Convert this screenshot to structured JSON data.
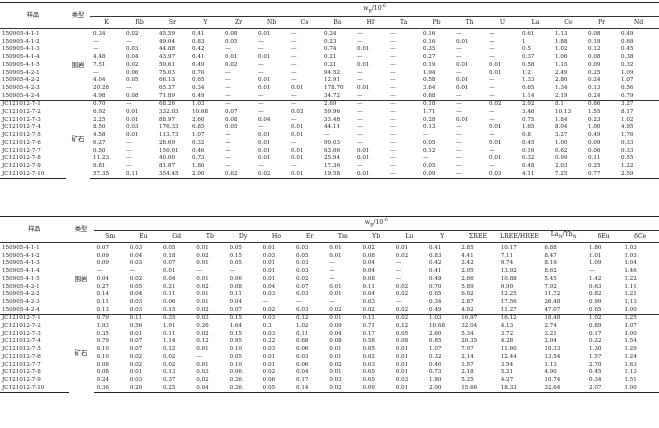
{
  "table1": {
    "header_left": [
      "样品",
      "类型"
    ],
    "unit": "w_B/10^-6",
    "columns": [
      "K",
      "Rb",
      "Sr",
      "Y",
      "Zr",
      "Nb",
      "Cs",
      "Ba",
      "Hf",
      "Ta",
      "Pb",
      "Th",
      "U",
      "La",
      "Ce",
      "Pr",
      "Nd"
    ],
    "groups": [
      {
        "label": "围岩",
        "rows": [
          {
            "sample": "150905-4-1-1",
            "values": [
              "0.34",
              "0.02",
              "45.59",
              "0.41",
              "0.08",
              "0.01",
              "—",
              "0.24",
              "—",
              "—",
              "0.16",
              "—",
              "—",
              "0.61",
              "1.13",
              "0.08",
              "0.49"
            ]
          },
          {
            "sample": "150905-4-1-2",
            "values": [
              "—",
              "—",
              "49.04",
              "0.83",
              "0.05",
              "—",
              "—",
              "0.23",
              "—",
              "—",
              "0.16",
              "0.01",
              "—",
              "1",
              "1.88",
              "0.18",
              "0.68"
            ]
          },
          {
            "sample": "150905-4-1-3",
            "values": [
              "—",
              "0.03",
              "44.88",
              "0.42",
              "—",
              "—",
              "—",
              "0.74",
              "0.01",
              "—",
              "0.35",
              "—",
              "—",
              "0.5",
              "1.02",
              "0.12",
              "0.45"
            ]
          },
          {
            "sample": "150905-4-1-4",
            "values": [
              "4.48",
              "0.04",
              "43.97",
              "0.41",
              "0.01",
              "0.01",
              "—",
              "0.21",
              "—",
              "—",
              "0.27",
              "—",
              "—",
              "0.37",
              "1.06",
              "0.08",
              "0.38"
            ]
          },
          {
            "sample": "150905-4-1-5",
            "values": [
              "7.51",
              "0.02",
              "50.61",
              "0.49",
              "0.02",
              "—",
              "—",
              "0.21",
              "0.01",
              "—",
              "0.19",
              "0.01",
              "0.01",
              "0.58",
              "1.15",
              "0.09",
              "0.32"
            ]
          },
          {
            "sample": "150905-4-2-1",
            "values": [
              "—",
              "0.06",
              "75.03",
              "0.70",
              "—",
              "—",
              "—",
              "94.52",
              "—",
              "—",
              "1.94",
              "—",
              "0.01",
              "1.2",
              "2.49",
              "0.25",
              "1.09"
            ]
          },
          {
            "sample": "150905-4-2-2",
            "values": [
              "4.04",
              "0.05",
              "66.13",
              "0.65",
              "—",
              "0.01",
              "—",
              "12.91",
              "—",
              "—",
              "0.58",
              "0.01",
              "—",
              "1.33",
              "2.80",
              "0.24",
              "1.07"
            ]
          },
          {
            "sample": "150905-4-2-3",
            "values": [
              "20.28",
              "—",
              "65.37",
              "0.34",
              "—",
              "0.01",
              "0.01",
              "178.70",
              "0.01",
              "—",
              "3.64",
              "0.01",
              "—",
              "0.65",
              "1.34",
              "0.13",
              "0.56"
            ]
          },
          {
            "sample": "150905-4-2-4",
            "values": [
              "4.98",
              "0.08",
              "71.89",
              "0.49",
              "—",
              "—",
              "—",
              "34.72",
              "—",
              "—",
              "0.68",
              "—",
              "—",
              "1.14",
              "2.19",
              "0.24",
              "0.79"
            ]
          }
        ]
      },
      {
        "label": "矿石",
        "rows": [
          {
            "sample": "JC121012-7-1",
            "values": [
              "0.70",
              "—",
              "68.26",
              "1.03",
              "—",
              "—",
              "—",
              "2.69",
              "—",
              "—",
              "0.18",
              "—",
              "0.02",
              "2.92",
              "8.1",
              "0.86",
              "3.27"
            ]
          },
          {
            "sample": "JC121012-7-2",
            "values": [
              "6.92",
              "0.01",
              "332.03",
              "10.68",
              "0.07",
              "—",
              "0.03",
              "59.96",
              "—",
              "—",
              "1.71",
              "—",
              "—",
              "3.46",
              "10.13",
              "1.55",
              "8.17"
            ]
          },
          {
            "sample": "JC121012-7-3",
            "values": [
              "2.25",
              "0.01",
              "88.97",
              "2.60",
              "0.08",
              "0.04",
              "—",
              "33.48",
              "—",
              "—",
              "0.28",
              "0.01",
              "—",
              "0.75",
              "1.84",
              "0.23",
              "1.02"
            ]
          },
          {
            "sample": "JC121012-7-4",
            "values": [
              "8.50",
              "0.03",
              "176.33",
              "6.85",
              "0.05",
              "—",
              "0.01",
              "44.11",
              "—",
              "—",
              "0.13",
              "—",
              "0.01",
              "1.65",
              "8.04",
              "1.00",
              "4.95"
            ]
          },
          {
            "sample": "JC121012-7-5",
            "values": [
              "4.58",
              "0.01",
              "113.73",
              "1.07",
              "—",
              "0.01",
              "0.01",
              "—",
              "—",
              "—",
              "—",
              "—",
              "—",
              "0.8",
              "3.27",
              "0.49",
              "1.76"
            ]
          },
          {
            "sample": "JC121012-7-6",
            "values": [
              "6.27",
              "—",
              "28.69",
              "0.32",
              "—",
              "0.01",
              "—",
              "99.03",
              "—",
              "—",
              "0.05",
              "—",
              "0.01",
              "0.45",
              "1.00",
              "0.09",
              "0.33"
            ]
          },
          {
            "sample": "JC121012-7-7",
            "values": [
              "0.50",
              "—",
              "156.01",
              "0.46",
              "—",
              "0.01",
              "0.01",
              "63.06",
              "0.01",
              "—",
              "0.12",
              "—",
              "—",
              "0.16",
              "0.62",
              "0.06",
              "0.33"
            ]
          },
          {
            "sample": "JC121012-7-8",
            "values": [
              "11.23",
              "—",
              "40.00",
              "0.73",
              "—",
              "0.01",
              "0.01",
              "25.94",
              "0.01",
              "—",
              "—",
              "—",
              "0.01",
              "0.32",
              "0.99",
              "0.11",
              "0.55"
            ]
          },
          {
            "sample": "JC121012-7-9",
            "values": [
              "9.81",
              "—",
              "81.87",
              "1.80",
              "—",
              "—",
              "—",
              "17.36",
              "—",
              "—",
              "0.05",
              "—",
              "—",
              "0.48",
              "2.03",
              "0.25",
              "1.22"
            ]
          },
          {
            "sample": "JC121012-7-10",
            "values": [
              "57.35",
              "0.11",
              "354.45",
              "2.00",
              "0.62",
              "0.02",
              "0.01",
              "19.58",
              "0.01",
              "—",
              "0.09",
              "—",
              "0.03",
              "4.11",
              "7.25",
              "0.77",
              "2.59"
            ]
          }
        ]
      }
    ]
  },
  "table2": {
    "header_left": [
      "样品",
      "类型"
    ],
    "unit": "w_B/10^-6",
    "columns": [
      "Sm",
      "Eu",
      "Gd",
      "Tb",
      "Dy",
      "Ho",
      "Er",
      "Tm",
      "Yb",
      "Lu",
      "Y",
      "ΣREE",
      "LREE/HREE",
      "La_N/Yb_N",
      "δEu",
      "δCe"
    ],
    "groups": [
      {
        "label": "围岩",
        "rows": [
          {
            "sample": "150905-4-1-1",
            "values": [
              "0.07",
              "0.03",
              "0.05",
              "0.01",
              "0.05",
              "0.01",
              "0.03",
              "0.01",
              "0.02",
              "0.01",
              "0.41",
              "2.85",
              "10.17",
              "6.88",
              "1.80",
              "1.03"
            ]
          },
          {
            "sample": "150905-4-1-2",
            "values": [
              "0.09",
              "0.04",
              "0.18",
              "0.02",
              "0.15",
              "0.03",
              "0.05",
              "0.01",
              "0.08",
              "0.02",
              "0.83",
              "4.41",
              "7.11",
              "8.47",
              "1.01",
              "1.03"
            ]
          },
          {
            "sample": "150905-4-1-3",
            "values": [
              "0.09",
              "0.03",
              "0.07",
              "0.01",
              "0.05",
              "0.01",
              "0.03",
              "—",
              "0.04",
              "—",
              "0.42",
              "2.42",
              "9.74",
              "8.19",
              "1.09",
              "1.04"
            ]
          },
          {
            "sample": "150905-4-1-4",
            "values": [
              "—",
              "—",
              "0.01",
              "—",
              "—",
              "0.01",
              "0.03",
              "—",
              "0.04",
              "—",
              "0.41",
              "2.05",
              "13.02",
              "8.62",
              "—",
              "1.46"
            ]
          },
          {
            "sample": "150905-4-1-5",
            "values": [
              "0.04",
              "0.02",
              "0.04",
              "0.01",
              "0.06",
              "0.01",
              "0.02",
              "—",
              "0.08",
              "—",
              "0.49",
              "2.66",
              "10.88",
              "5.45",
              "1.42",
              "1.22"
            ]
          },
          {
            "sample": "150905-4-2-1",
            "values": [
              "0.27",
              "0.05",
              "0.21",
              "0.02",
              "0.08",
              "0.04",
              "0.07",
              "0.01",
              "0.11",
              "0.02",
              "0.70",
              "5.89",
              "9.90",
              "7.92",
              "0.63",
              "1.11"
            ]
          },
          {
            "sample": "150905-4-2-2",
            "values": [
              "0.14",
              "0.04",
              "0.11",
              "0.01",
              "0.11",
              "0.03",
              "0.03",
              "0.01",
              "0.04",
              "0.02",
              "0.65",
              "6.02",
              "12.25",
              "11.72",
              "0.82",
              "1.21"
            ]
          },
          {
            "sample": "150905-4-2-3",
            "values": [
              "0.11",
              "0.03",
              "0.06",
              "0.01",
              "0.04",
              "—",
              "—",
              "—",
              "0.03",
              "—",
              "0.34",
              "2.87",
              "17.56",
              "26.48",
              "0.99",
              "1.13"
            ]
          },
          {
            "sample": "150905-4-2-4",
            "values": [
              "0.13",
              "0.03",
              "0.15",
              "0.02",
              "0.07",
              "0.02",
              "0.03",
              "0.02",
              "0.02",
              "0.02",
              "0.49",
              "4.92",
              "11.27",
              "47.07",
              "0.65",
              "1.00"
            ]
          }
        ]
      },
      {
        "label": "矿石",
        "rows": [
          {
            "sample": "JC121012-7-1",
            "values": [
              "0.79",
              "0.11",
              "0.35",
              "0.03",
              "0.15",
              "0.03",
              "0.12",
              "0.01",
              "0.11",
              "0.02",
              "1.03",
              "16.97",
              "16.12",
              "18.48",
              "1.02",
              "1.25"
            ]
          },
          {
            "sample": "JC121012-7-2",
            "values": [
              "1.93",
              "0.56",
              "1.91",
              "0.26",
              "1.64",
              "0.3",
              "1.02",
              "0.09",
              "0.71",
              "0.12",
              "10.68",
              "32.04",
              "4.13",
              "2.74",
              "0.89",
              "1.07"
            ]
          },
          {
            "sample": "JC121012-7-3",
            "values": [
              "0.35",
              "0.01",
              "0.11",
              "0.02",
              "0.15",
              "0.03",
              "0.11",
              "0.04",
              "0.17",
              "0.05",
              "2.60",
              "5.34",
              "3.72",
              "3.21",
              "0.17",
              "1.00"
            ]
          },
          {
            "sample": "JC121012-7-4",
            "values": [
              "0.79",
              "0.07",
              "1.14",
              "0.12",
              "0.95",
              "0.22",
              "0.68",
              "0.08",
              "0.58",
              "0.08",
              "6.85",
              "20.35",
              "4.28",
              "2.04",
              "0.22",
              "1.54"
            ]
          },
          {
            "sample": "JC121012-7-5",
            "values": [
              "0.10",
              "0.07",
              "0.12",
              "0.01",
              "0.10",
              "0.03",
              "0.06",
              "0.01",
              "0.05",
              "0.01",
              "1.07",
              "7.07",
              "11.60",
              "10.33",
              "1.30",
              "1.29"
            ]
          },
          {
            "sample": "JC121012-7-6",
            "values": [
              "0.10",
              "0.02",
              "0.02",
              "—",
              "0.05",
              "0.01",
              "0.03",
              "0.01",
              "0.02",
              "0.01",
              "0.32",
              "2.14",
              "12.44",
              "13.54",
              "1.57",
              "1.24"
            ]
          },
          {
            "sample": "JC121012-7-7",
            "values": [
              "0.08",
              "0.02",
              "0.02",
              "0.01",
              "0.10",
              "0.01",
              "0.06",
              "0.02",
              "0.03",
              "0.01",
              "0.46",
              "1.57",
              "3.54",
              "1.13",
              "2.70",
              "1.63"
            ]
          },
          {
            "sample": "JC121012-7-8",
            "values": [
              "0.08",
              "0.01",
              "0.13",
              "0.03",
              "0.06",
              "0.02",
              "0.04",
              "0.01",
              "0.05",
              "0.01",
              "0.73",
              "2.18",
              "5.21",
              "4.90",
              "0.45",
              "1.13"
            ]
          },
          {
            "sample": "JC121012-7-9",
            "values": [
              "0.24",
              "0.03",
              "0.37",
              "0.02",
              "0.26",
              "0.06",
              "0.17",
              "0.03",
              "0.05",
              "0.03",
              "1.80",
              "5.25",
              "4.27",
              "10.74",
              "0.34",
              "1.51"
            ]
          },
          {
            "sample": "JC121012-7-10",
            "values": [
              "0.36",
              "0.20",
              "0.25",
              "0.04",
              "0.26",
              "0.05",
              "0.14",
              "0.02",
              "0.09",
              "0.01",
              "2.00",
              "15.66",
              "18.33",
              "32.64",
              "2.07",
              "1.00"
            ]
          }
        ]
      }
    ]
  }
}
